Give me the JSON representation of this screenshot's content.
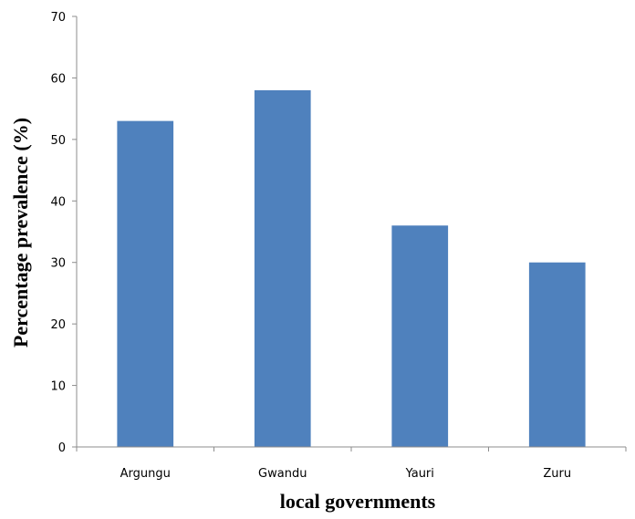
{
  "chart_data": {
    "type": "bar",
    "title": "",
    "xlabel": "local governments",
    "ylabel": "Percentage prevalence (%)",
    "categories": [
      "Argungu",
      "Gwandu",
      "Yauri",
      "Zuru"
    ],
    "values": [
      53,
      58,
      36,
      30
    ],
    "ylim": [
      0,
      70
    ],
    "yticks": [
      0,
      10,
      20,
      30,
      40,
      50,
      60,
      70
    ],
    "grid": false,
    "legend": "none",
    "bar_color": "#4f81bd"
  }
}
